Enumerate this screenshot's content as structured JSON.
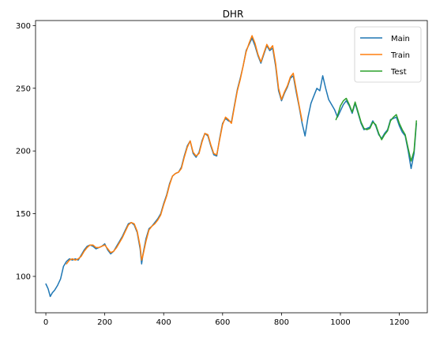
{
  "chart_data": {
    "type": "line",
    "title": "DHR",
    "xlabel": "",
    "ylabel": "",
    "xlim": [
      -35,
      1295
    ],
    "ylim": [
      71,
      304
    ],
    "xticks": [
      0,
      200,
      400,
      600,
      800,
      1000,
      1200
    ],
    "yticks": [
      100,
      150,
      200,
      250,
      300
    ],
    "legend_position": "top-right",
    "grid": false,
    "series": [
      {
        "name": "Main",
        "color": "#1f77b4",
        "points": [
          [
            0,
            94
          ],
          [
            8,
            90
          ],
          [
            15,
            84
          ],
          [
            22,
            87
          ],
          [
            30,
            89
          ],
          [
            40,
            93
          ],
          [
            50,
            98
          ],
          [
            60,
            108
          ],
          [
            70,
            112
          ],
          [
            80,
            114
          ],
          [
            90,
            113
          ],
          [
            100,
            114
          ],
          [
            110,
            113
          ],
          [
            120,
            117
          ],
          [
            130,
            121
          ],
          [
            140,
            124
          ],
          [
            150,
            125
          ],
          [
            160,
            124
          ],
          [
            170,
            122
          ],
          [
            180,
            123
          ],
          [
            190,
            124
          ],
          [
            200,
            126
          ],
          [
            210,
            121
          ],
          [
            220,
            118
          ],
          [
            230,
            120
          ],
          [
            240,
            124
          ],
          [
            250,
            128
          ],
          [
            260,
            132
          ],
          [
            270,
            137
          ],
          [
            280,
            142
          ],
          [
            290,
            143
          ],
          [
            300,
            141
          ],
          [
            310,
            135
          ],
          [
            320,
            122
          ],
          [
            325,
            110
          ],
          [
            330,
            118
          ],
          [
            340,
            130
          ],
          [
            350,
            138
          ],
          [
            360,
            140
          ],
          [
            370,
            143
          ],
          [
            380,
            146
          ],
          [
            390,
            150
          ],
          [
            400,
            158
          ],
          [
            410,
            165
          ],
          [
            420,
            174
          ],
          [
            430,
            180
          ],
          [
            440,
            182
          ],
          [
            450,
            183
          ],
          [
            460,
            187
          ],
          [
            470,
            196
          ],
          [
            480,
            204
          ],
          [
            490,
            208
          ],
          [
            500,
            198
          ],
          [
            510,
            195
          ],
          [
            520,
            199
          ],
          [
            530,
            208
          ],
          [
            540,
            214
          ],
          [
            550,
            212
          ],
          [
            560,
            204
          ],
          [
            570,
            197
          ],
          [
            580,
            196
          ],
          [
            590,
            210
          ],
          [
            600,
            222
          ],
          [
            610,
            226
          ],
          [
            620,
            224
          ],
          [
            630,
            223
          ],
          [
            640,
            236
          ],
          [
            650,
            249
          ],
          [
            660,
            258
          ],
          [
            670,
            268
          ],
          [
            680,
            280
          ],
          [
            690,
            285
          ],
          [
            700,
            290
          ],
          [
            710,
            284
          ],
          [
            720,
            276
          ],
          [
            730,
            270
          ],
          [
            740,
            277
          ],
          [
            750,
            284
          ],
          [
            760,
            280
          ],
          [
            770,
            282
          ],
          [
            780,
            268
          ],
          [
            790,
            248
          ],
          [
            800,
            240
          ],
          [
            810,
            246
          ],
          [
            820,
            251
          ],
          [
            830,
            258
          ],
          [
            840,
            260
          ],
          [
            850,
            247
          ],
          [
            860,
            235
          ],
          [
            870,
            222
          ],
          [
            880,
            212
          ],
          [
            890,
            227
          ],
          [
            900,
            238
          ],
          [
            910,
            244
          ],
          [
            920,
            250
          ],
          [
            930,
            248
          ],
          [
            940,
            260
          ],
          [
            950,
            250
          ],
          [
            960,
            241
          ],
          [
            970,
            237
          ],
          [
            980,
            233
          ],
          [
            990,
            227
          ],
          [
            1000,
            232
          ],
          [
            1010,
            237
          ],
          [
            1020,
            240
          ],
          [
            1030,
            236
          ],
          [
            1040,
            230
          ],
          [
            1050,
            238
          ],
          [
            1060,
            230
          ],
          [
            1070,
            222
          ],
          [
            1080,
            217
          ],
          [
            1090,
            218
          ],
          [
            1100,
            219
          ],
          [
            1110,
            224
          ],
          [
            1120,
            220
          ],
          [
            1130,
            213
          ],
          [
            1140,
            210
          ],
          [
            1150,
            214
          ],
          [
            1160,
            217
          ],
          [
            1170,
            225
          ],
          [
            1180,
            226
          ],
          [
            1190,
            227
          ],
          [
            1200,
            220
          ],
          [
            1210,
            215
          ],
          [
            1220,
            212
          ],
          [
            1230,
            200
          ],
          [
            1240,
            186
          ],
          [
            1250,
            198
          ],
          [
            1258,
            222
          ]
        ]
      },
      {
        "name": "Train",
        "color": "#ff7f0e",
        "points": [
          [
            70,
            110
          ],
          [
            80,
            113
          ],
          [
            90,
            114
          ],
          [
            100,
            113
          ],
          [
            110,
            114
          ],
          [
            120,
            116
          ],
          [
            130,
            120
          ],
          [
            140,
            123
          ],
          [
            150,
            125
          ],
          [
            160,
            125
          ],
          [
            170,
            123
          ],
          [
            180,
            123
          ],
          [
            190,
            124
          ],
          [
            200,
            125
          ],
          [
            210,
            122
          ],
          [
            220,
            119
          ],
          [
            230,
            120
          ],
          [
            240,
            123
          ],
          [
            250,
            127
          ],
          [
            260,
            131
          ],
          [
            270,
            136
          ],
          [
            280,
            141
          ],
          [
            290,
            143
          ],
          [
            300,
            142
          ],
          [
            310,
            136
          ],
          [
            320,
            124
          ],
          [
            325,
            113
          ],
          [
            330,
            117
          ],
          [
            340,
            128
          ],
          [
            350,
            137
          ],
          [
            360,
            140
          ],
          [
            370,
            142
          ],
          [
            380,
            145
          ],
          [
            390,
            149
          ],
          [
            400,
            157
          ],
          [
            410,
            164
          ],
          [
            420,
            173
          ],
          [
            430,
            180
          ],
          [
            440,
            182
          ],
          [
            450,
            183
          ],
          [
            460,
            186
          ],
          [
            470,
            195
          ],
          [
            480,
            203
          ],
          [
            490,
            208
          ],
          [
            500,
            199
          ],
          [
            510,
            196
          ],
          [
            520,
            198
          ],
          [
            530,
            207
          ],
          [
            540,
            214
          ],
          [
            550,
            213
          ],
          [
            560,
            205
          ],
          [
            570,
            198
          ],
          [
            580,
            197
          ],
          [
            590,
            209
          ],
          [
            600,
            221
          ],
          [
            610,
            227
          ],
          [
            620,
            225
          ],
          [
            630,
            222
          ],
          [
            640,
            235
          ],
          [
            650,
            248
          ],
          [
            660,
            257
          ],
          [
            670,
            268
          ],
          [
            680,
            279
          ],
          [
            690,
            286
          ],
          [
            700,
            292
          ],
          [
            710,
            286
          ],
          [
            720,
            277
          ],
          [
            730,
            271
          ],
          [
            740,
            278
          ],
          [
            750,
            285
          ],
          [
            760,
            281
          ],
          [
            770,
            284
          ],
          [
            780,
            270
          ],
          [
            790,
            250
          ],
          [
            800,
            241
          ],
          [
            810,
            247
          ],
          [
            820,
            252
          ],
          [
            830,
            259
          ],
          [
            840,
            262
          ],
          [
            850,
            249
          ],
          [
            860,
            236
          ],
          [
            870,
            224
          ]
        ]
      },
      {
        "name": "Test",
        "color": "#2ca02c",
        "points": [
          [
            985,
            225
          ],
          [
            990,
            228
          ],
          [
            1000,
            236
          ],
          [
            1010,
            240
          ],
          [
            1020,
            242
          ],
          [
            1030,
            237
          ],
          [
            1040,
            231
          ],
          [
            1050,
            239
          ],
          [
            1060,
            231
          ],
          [
            1070,
            223
          ],
          [
            1080,
            218
          ],
          [
            1090,
            217
          ],
          [
            1100,
            218
          ],
          [
            1110,
            223
          ],
          [
            1120,
            221
          ],
          [
            1130,
            214
          ],
          [
            1140,
            209
          ],
          [
            1150,
            213
          ],
          [
            1160,
            216
          ],
          [
            1170,
            224
          ],
          [
            1180,
            227
          ],
          [
            1190,
            229
          ],
          [
            1200,
            222
          ],
          [
            1210,
            217
          ],
          [
            1220,
            213
          ],
          [
            1230,
            202
          ],
          [
            1240,
            192
          ],
          [
            1250,
            200
          ],
          [
            1258,
            224
          ]
        ]
      }
    ]
  }
}
